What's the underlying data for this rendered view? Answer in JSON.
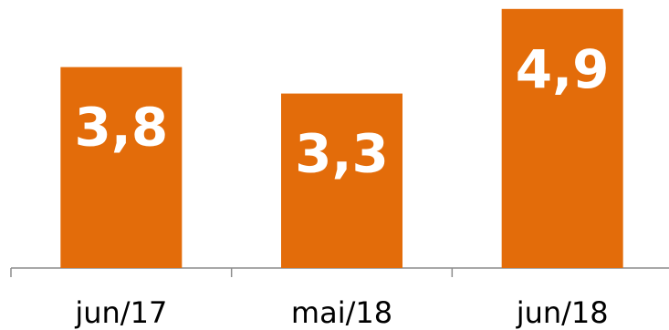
{
  "chart_data": {
    "type": "bar",
    "categories": [
      "jun/17",
      "mai/18",
      "jun/18"
    ],
    "values": [
      3.8,
      3.3,
      4.9
    ],
    "value_labels": [
      "3,8",
      "3,3",
      "4,9"
    ],
    "title": "",
    "xlabel": "",
    "ylabel": "",
    "ylim": [
      0,
      5
    ],
    "grid": false,
    "legend": "none",
    "bar_color": "#E36C0A",
    "axis_color": "#8C8C8C",
    "label_color": "#FFFFFF"
  }
}
